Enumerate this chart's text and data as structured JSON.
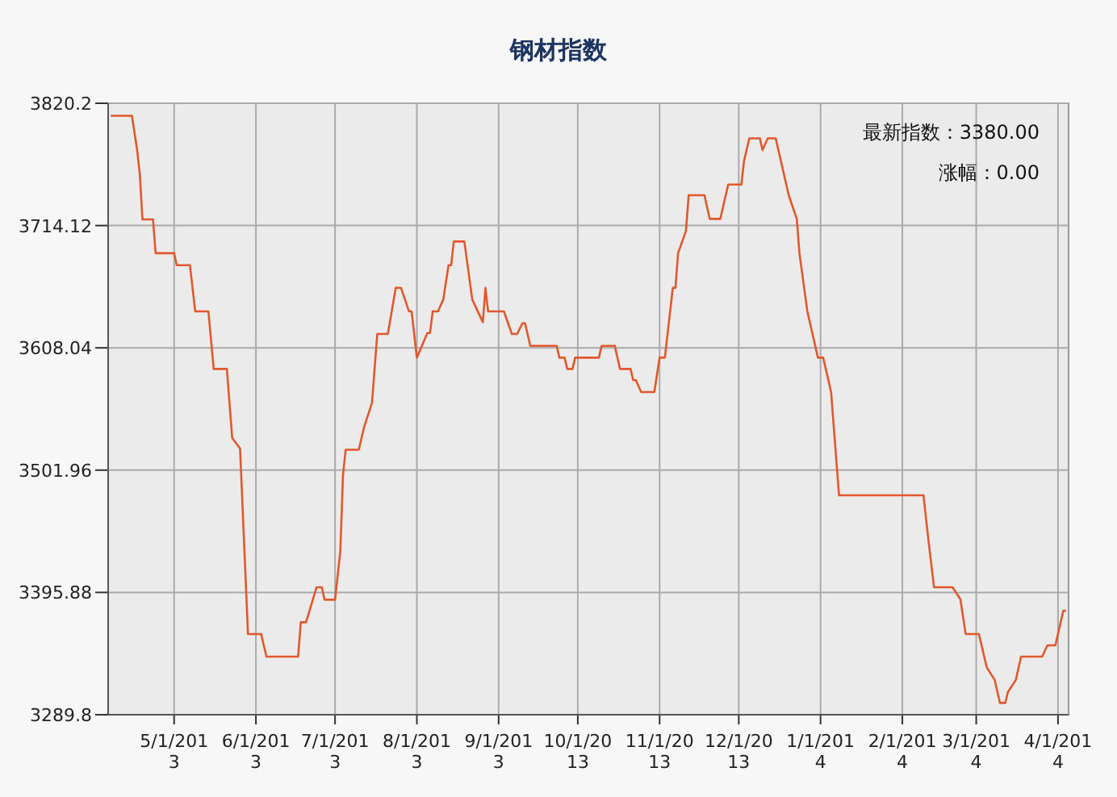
{
  "chart_data": {
    "type": "line",
    "title": "钢材指数",
    "annotations": [
      "最新指数：3380.00",
      "涨幅：0.00"
    ],
    "xlim": [
      "2013-04-06",
      "2014-04-05"
    ],
    "xticks": [
      {
        "value": "2013-05-01",
        "label": "5/1/2013"
      },
      {
        "value": "2013-06-01",
        "label": "6/1/2013"
      },
      {
        "value": "2013-07-01",
        "label": "7/1/2013"
      },
      {
        "value": "2013-08-01",
        "label": "8/1/2013"
      },
      {
        "value": "2013-09-01",
        "label": "9/1/2013"
      },
      {
        "value": "2013-10-01",
        "label": "10/1/2013"
      },
      {
        "value": "2013-11-01",
        "label": "11/1/2013"
      },
      {
        "value": "2013-12-01",
        "label": "12/1/2013"
      },
      {
        "value": "2014-01-01",
        "label": "1/1/2014"
      },
      {
        "value": "2014-02-01",
        "label": "2/1/2014"
      },
      {
        "value": "2014-03-01",
        "label": "3/1/2014"
      },
      {
        "value": "2014-04-01",
        "label": "4/1/2014"
      }
    ],
    "ylim": [
      3289.8,
      3820.2
    ],
    "yticks": [
      3289.8,
      3395.88,
      3501.96,
      3608.04,
      3714.12,
      3820.2
    ],
    "grid": true,
    "series": [
      {
        "color": "#e2582c",
        "x": [
          "2013-04-07",
          "2013-04-15",
          "2013-04-17",
          "2013-04-18",
          "2013-04-19",
          "2013-04-23",
          "2013-04-24",
          "2013-05-01",
          "2013-05-02",
          "2013-05-07",
          "2013-05-09",
          "2013-05-14",
          "2013-05-16",
          "2013-05-21",
          "2013-05-23",
          "2013-05-26",
          "2013-05-29",
          "2013-06-03",
          "2013-06-05",
          "2013-06-17",
          "2013-06-18",
          "2013-06-20",
          "2013-06-24",
          "2013-06-26",
          "2013-06-27",
          "2013-07-01",
          "2013-07-03",
          "2013-07-04",
          "2013-07-05",
          "2013-07-10",
          "2013-07-12",
          "2013-07-15",
          "2013-07-17",
          "2013-07-21",
          "2013-07-24",
          "2013-07-26",
          "2013-07-29",
          "2013-07-30",
          "2013-08-01",
          "2013-08-05",
          "2013-08-06",
          "2013-08-07",
          "2013-08-09",
          "2013-08-11",
          "2013-08-13",
          "2013-08-14",
          "2013-08-15",
          "2013-08-19",
          "2013-08-22",
          "2013-08-26",
          "2013-08-27",
          "2013-08-28",
          "2013-09-03",
          "2013-09-06",
          "2013-09-08",
          "2013-09-10",
          "2013-09-11",
          "2013-09-13",
          "2013-09-23",
          "2013-09-24",
          "2013-09-26",
          "2013-09-27",
          "2013-09-29",
          "2013-09-30",
          "2013-10-09",
          "2013-10-10",
          "2013-10-15",
          "2013-10-17",
          "2013-10-21",
          "2013-10-22",
          "2013-10-23",
          "2013-10-25",
          "2013-10-30",
          "2013-11-01",
          "2013-11-03",
          "2013-11-06",
          "2013-11-07",
          "2013-11-08",
          "2013-11-11",
          "2013-11-12",
          "2013-11-18",
          "2013-11-20",
          "2013-11-24",
          "2013-11-27",
          "2013-12-02",
          "2013-12-03",
          "2013-12-05",
          "2013-12-09",
          "2013-12-10",
          "2013-12-12",
          "2013-12-15",
          "2013-12-20",
          "2013-12-23",
          "2013-12-24",
          "2013-12-27",
          "2013-12-31",
          "2014-01-02",
          "2014-01-05",
          "2014-01-08",
          "2014-02-09",
          "2014-02-11",
          "2014-02-13",
          "2014-02-20",
          "2014-02-23",
          "2014-02-25",
          "2014-03-02",
          "2014-03-05",
          "2014-03-08",
          "2014-03-10",
          "2014-03-12",
          "2014-03-13",
          "2014-03-16",
          "2014-03-18",
          "2014-03-26",
          "2014-03-28",
          "2014-03-31",
          "2014-04-03",
          "2014-04-04"
        ],
        "values": [
          3809.4,
          3809.4,
          3779.6,
          3758.6,
          3719.4,
          3719.4,
          3690.1,
          3690.1,
          3679.7,
          3679.7,
          3639.7,
          3639.7,
          3589.7,
          3589.7,
          3530,
          3520.7,
          3359.8,
          3359.8,
          3340.2,
          3340.2,
          3370,
          3370,
          3400.4,
          3400.4,
          3389.6,
          3389.6,
          3432,
          3497.3,
          3519.7,
          3519.7,
          3539.3,
          3560.3,
          3620.1,
          3620.1,
          3660.1,
          3660.1,
          3639.7,
          3639.7,
          3599.5,
          3621,
          3621,
          3639.7,
          3639.7,
          3649.9,
          3679.7,
          3679.7,
          3700.3,
          3700.3,
          3649.9,
          3630.3,
          3660.1,
          3639.7,
          3639.7,
          3620.1,
          3620.1,
          3629.3,
          3629.3,
          3609.7,
          3609.7,
          3599.5,
          3599.5,
          3589.7,
          3589.7,
          3599.5,
          3599.5,
          3609.7,
          3609.7,
          3589.7,
          3589.7,
          3580,
          3580,
          3569.7,
          3569.7,
          3599.5,
          3599.5,
          3660.1,
          3660.1,
          3690.1,
          3709.6,
          3740.4,
          3740.4,
          3719.9,
          3719.9,
          3749.7,
          3749.7,
          3770.2,
          3789.8,
          3789.8,
          3779.6,
          3789.8,
          3789.8,
          3739.9,
          3719.9,
          3690.1,
          3639.7,
          3599.5,
          3599.5,
          3569.7,
          3480.1,
          3480.1,
          3439,
          3400.4,
          3400.4,
          3390,
          3359.8,
          3359.8,
          3330.8,
          3320,
          3300,
          3300,
          3309.4,
          3320,
          3340.2,
          3340.2,
          3350,
          3350,
          3380,
          3380
        ]
      }
    ]
  }
}
